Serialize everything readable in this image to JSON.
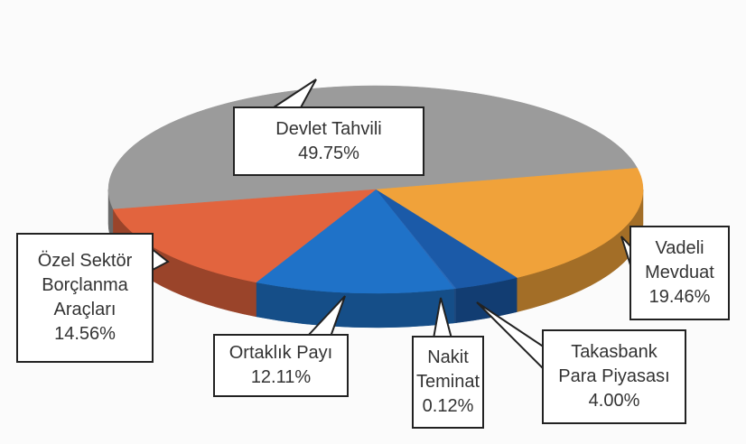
{
  "chart_data": {
    "type": "pie",
    "categories": [
      "Devlet Tahvili",
      "Vadeli Mevduat",
      "Takasbank Para Piyasası",
      "Nakit Teminat",
      "Ortaklık Payı",
      "Özel Sektör Borçlanma Araçları"
    ],
    "values": [
      49.75,
      19.46,
      4.0,
      0.12,
      12.11,
      14.56
    ],
    "value_labels": [
      "49.75%",
      "19.46%",
      "4.00%",
      "0.12%",
      "12.11%",
      "14.56%"
    ],
    "colors": [
      "#9b9b9b",
      "#f0a23a",
      "#1b5aa8",
      "#2a6ab8",
      "#1f72c8",
      "#e2643e"
    ]
  }
}
